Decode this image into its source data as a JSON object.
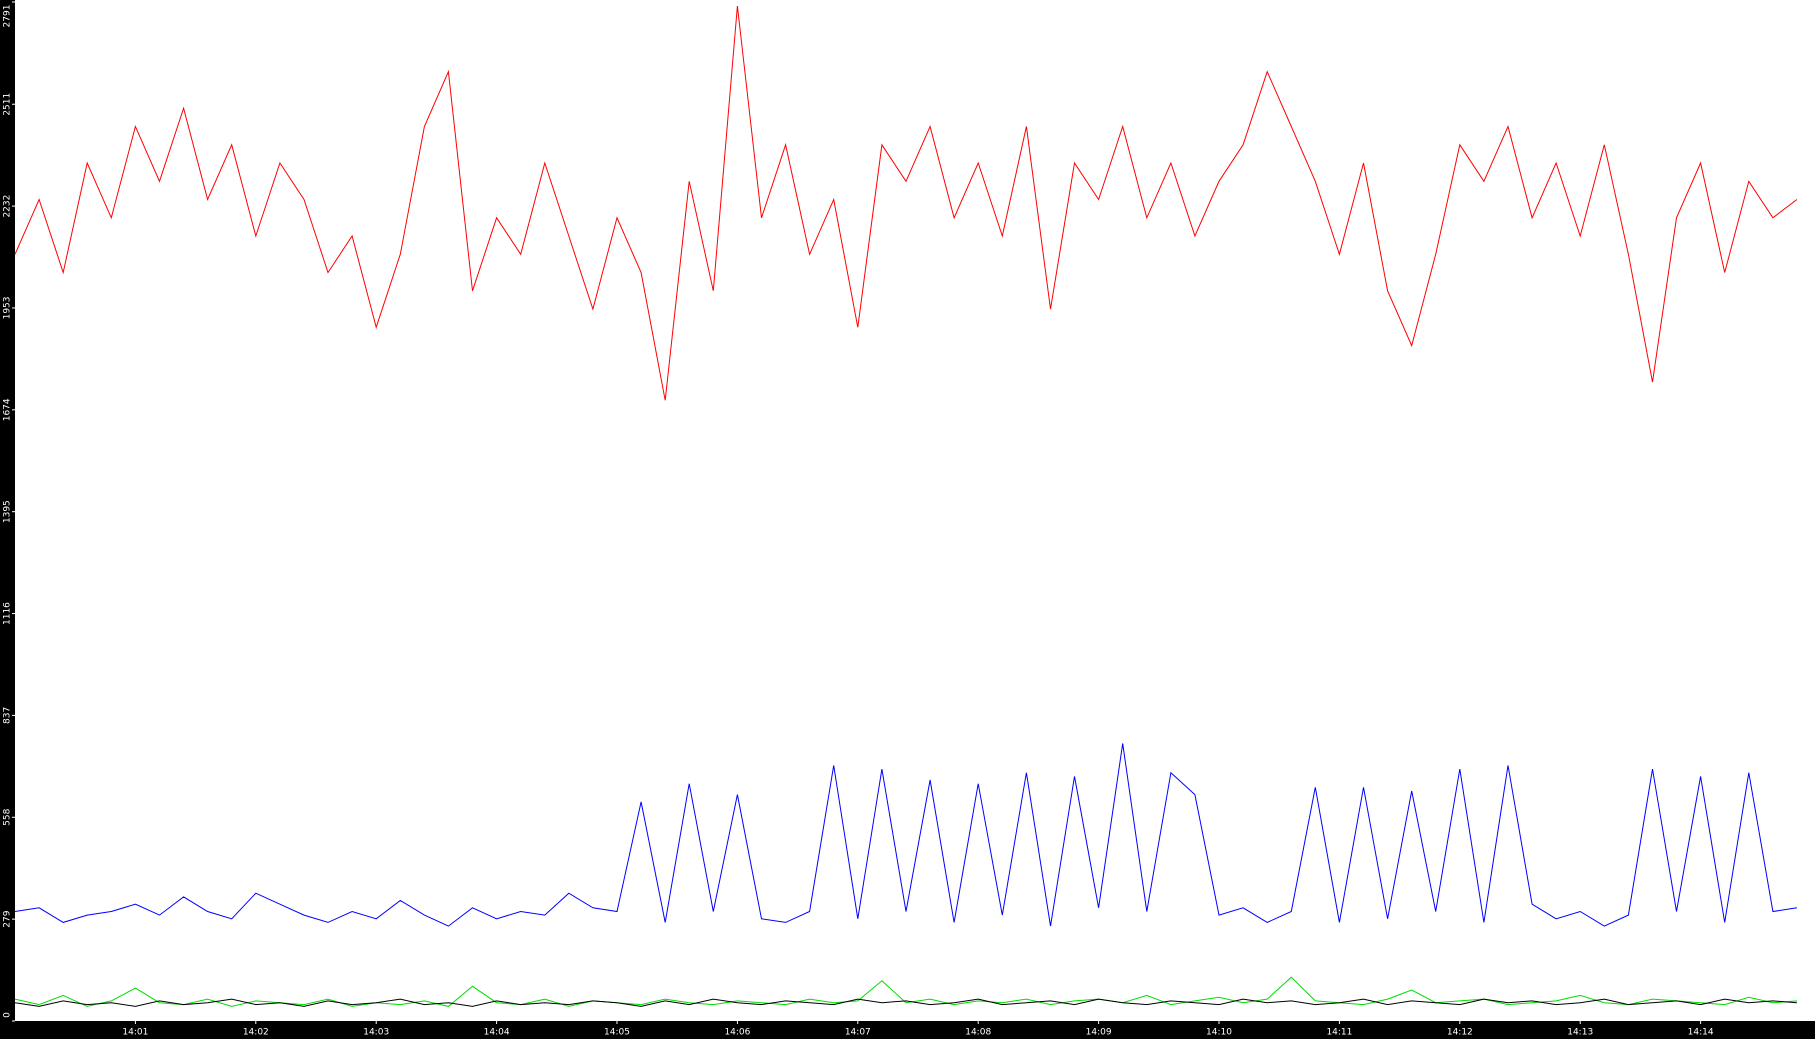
{
  "chart_data": {
    "type": "line",
    "x": [
      0,
      0.2,
      0.4,
      0.6,
      0.8,
      1,
      1.2,
      1.4,
      1.6,
      1.8,
      2,
      2.2,
      2.4,
      2.6,
      2.8,
      3,
      3.2,
      3.4,
      3.6,
      3.8,
      4,
      4.2,
      4.4,
      4.6,
      4.8,
      5,
      5.2,
      5.4,
      5.6,
      5.8,
      6,
      6.2,
      6.4,
      6.6,
      6.8,
      7,
      7.2,
      7.4,
      7.6,
      7.8,
      8,
      8.2,
      8.4,
      8.6,
      8.8,
      9,
      9.2,
      9.4,
      9.6,
      9.8,
      10,
      10.2,
      10.4,
      10.6,
      10.8,
      11,
      11.2,
      11.4,
      11.6,
      11.8,
      12,
      12.2,
      12.4,
      12.6,
      12.8,
      13,
      13.2,
      13.4,
      13.6,
      13.8,
      14,
      14.2,
      14.4,
      14.6,
      14.8
    ],
    "series": [
      {
        "color": "#ff0000",
        "values": [
          2100,
          2250,
          2050,
          2350,
          2200,
          2450,
          2300,
          2500,
          2250,
          2400,
          2150,
          2350,
          2250,
          2050,
          2150,
          1900,
          2100,
          2450,
          2600,
          2000,
          2200,
          2100,
          2350,
          2150,
          1950,
          2200,
          2050,
          1700,
          2300,
          2000,
          2780,
          2200,
          2400,
          2100,
          2250,
          1900,
          2400,
          2300,
          2450,
          2200,
          2350,
          2150,
          2450,
          1950,
          2350,
          2250,
          2450,
          2200,
          2350,
          2150,
          2300,
          2400,
          2600,
          2450,
          2300,
          2100,
          2350,
          2000,
          1850,
          2100,
          2400,
          2300,
          2450,
          2200,
          2350,
          2150,
          2400,
          2100,
          1750,
          2200,
          2350,
          2050,
          2300,
          2200,
          2250
        ]
      },
      {
        "color": "#0000ff",
        "values": [
          300,
          310,
          270,
          290,
          300,
          320,
          290,
          340,
          300,
          280,
          350,
          320,
          290,
          270,
          300,
          280,
          330,
          290,
          260,
          310,
          280,
          300,
          290,
          350,
          310,
          300,
          600,
          270,
          650,
          300,
          620,
          280,
          270,
          300,
          700,
          280,
          690,
          300,
          660,
          270,
          650,
          290,
          680,
          260,
          670,
          310,
          760,
          300,
          680,
          620,
          290,
          310,
          270,
          300,
          640,
          270,
          640,
          280,
          630,
          300,
          690,
          270,
          700,
          320,
          280,
          300,
          260,
          290,
          690,
          300,
          670,
          270,
          680,
          300,
          310
        ]
      },
      {
        "color": "#00dd00",
        "values": [
          60,
          45,
          70,
          40,
          55,
          90,
          50,
          45,
          60,
          40,
          55,
          50,
          45,
          60,
          40,
          50,
          45,
          55,
          40,
          95,
          50,
          45,
          60,
          40,
          55,
          50,
          45,
          60,
          50,
          45,
          55,
          50,
          45,
          60,
          50,
          55,
          110,
          50,
          60,
          45,
          55,
          50,
          60,
          45,
          55,
          60,
          50,
          70,
          45,
          55,
          65,
          50,
          60,
          120,
          55,
          50,
          45,
          60,
          85,
          50,
          55,
          60,
          45,
          50,
          55,
          70,
          50,
          45,
          60,
          55,
          50,
          45,
          65,
          50,
          55
        ]
      },
      {
        "color": "#000000",
        "values": [
          50,
          40,
          55,
          45,
          50,
          40,
          55,
          45,
          50,
          60,
          45,
          50,
          40,
          55,
          45,
          50,
          60,
          45,
          50,
          40,
          55,
          45,
          50,
          45,
          55,
          50,
          40,
          55,
          45,
          60,
          50,
          45,
          55,
          50,
          45,
          60,
          50,
          55,
          45,
          50,
          60,
          45,
          50,
          55,
          45,
          60,
          50,
          45,
          55,
          50,
          45,
          60,
          50,
          55,
          45,
          50,
          60,
          45,
          55,
          50,
          45,
          60,
          50,
          55,
          45,
          50,
          60,
          45,
          50,
          55,
          45,
          60,
          50,
          55,
          50
        ]
      }
    ],
    "xlim": [
      0,
      14.95
    ],
    "xticks": [
      {
        "value": 1,
        "label": "14:01"
      },
      {
        "value": 2,
        "label": "14:02"
      },
      {
        "value": 3,
        "label": "14:03"
      },
      {
        "value": 4,
        "label": "14:04"
      },
      {
        "value": 5,
        "label": "14:05"
      },
      {
        "value": 6,
        "label": "14:06"
      },
      {
        "value": 7,
        "label": "14:07"
      },
      {
        "value": 8,
        "label": "14:08"
      },
      {
        "value": 9,
        "label": "14:09"
      },
      {
        "value": 10,
        "label": "14:10"
      },
      {
        "value": 11,
        "label": "14:11"
      },
      {
        "value": 12,
        "label": "14:12"
      },
      {
        "value": 13,
        "label": "14:13"
      },
      {
        "value": 14,
        "label": "14:14"
      }
    ],
    "ylim": [
      0,
      2791
    ],
    "yticks": [
      0,
      279,
      558,
      837,
      1116,
      1395,
      1674,
      1953,
      2232,
      2511,
      2791
    ]
  }
}
